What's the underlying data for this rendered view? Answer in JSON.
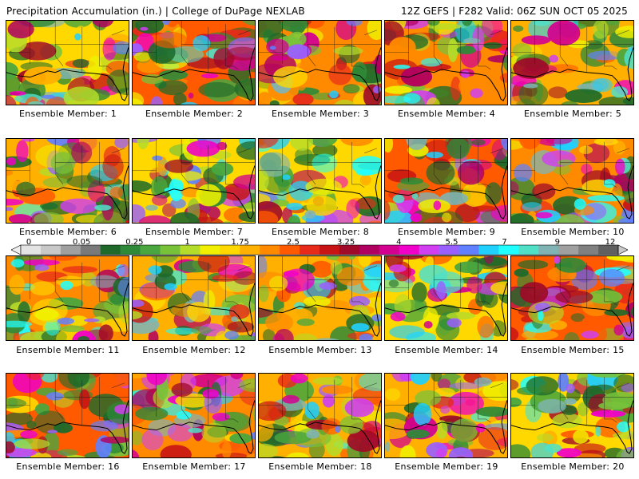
{
  "header": {
    "title_left": "Precipitation Accumulation (in.) | College of DuPage NEXLAB",
    "title_right": "12Z GEFS | F282 Valid: 06Z SUN OCT 05 2025"
  },
  "colorbar": {
    "tick_labels": [
      "0",
      "0.05",
      "0.25",
      "1",
      "1.75",
      "2.5",
      "3.25",
      "4",
      "5.5",
      "7",
      "9",
      "12"
    ],
    "colors": [
      "#e4e4e4",
      "#c8c8c8",
      "#a0a0a0",
      "#7a7a7a",
      "#1f6a2a",
      "#2e8a38",
      "#4aa63e",
      "#78c23a",
      "#b4dc2a",
      "#f0f000",
      "#ffd800",
      "#ffb000",
      "#ff8a00",
      "#ff5a00",
      "#e82a1a",
      "#c81414",
      "#a00a28",
      "#b00060",
      "#d40090",
      "#f000c8",
      "#d040f0",
      "#9a60ff",
      "#6080ff",
      "#20d0ff",
      "#20ffff",
      "#50e0c8",
      "#80b4b4",
      "#a0a0a0",
      "#808080",
      "#606060"
    ]
  },
  "panels": [
    {
      "label": "Ensemble Member: 1",
      "seed": 1
    },
    {
      "label": "Ensemble Member: 2",
      "seed": 2
    },
    {
      "label": "Ensemble Member: 3",
      "seed": 3
    },
    {
      "label": "Ensemble Member: 4",
      "seed": 4
    },
    {
      "label": "Ensemble Member: 5",
      "seed": 5
    },
    {
      "label": "Ensemble Member: 6",
      "seed": 6
    },
    {
      "label": "Ensemble Member: 7",
      "seed": 7
    },
    {
      "label": "Ensemble Member: 8",
      "seed": 8
    },
    {
      "label": "Ensemble Member: 9",
      "seed": 9
    },
    {
      "label": "Ensemble Member: 10",
      "seed": 10
    },
    {
      "label": "Ensemble Member: 11",
      "seed": 11
    },
    {
      "label": "Ensemble Member: 12",
      "seed": 12
    },
    {
      "label": "Ensemble Member: 13",
      "seed": 13
    },
    {
      "label": "Ensemble Member: 14",
      "seed": 14
    },
    {
      "label": "Ensemble Member: 15",
      "seed": 15
    },
    {
      "label": "Ensemble Member: 16",
      "seed": 16
    },
    {
      "label": "Ensemble Member: 17",
      "seed": 17
    },
    {
      "label": "Ensemble Member: 18",
      "seed": 18
    },
    {
      "label": "Ensemble Member: 19",
      "seed": 19
    },
    {
      "label": "Ensemble Member: 20",
      "seed": 20
    }
  ]
}
